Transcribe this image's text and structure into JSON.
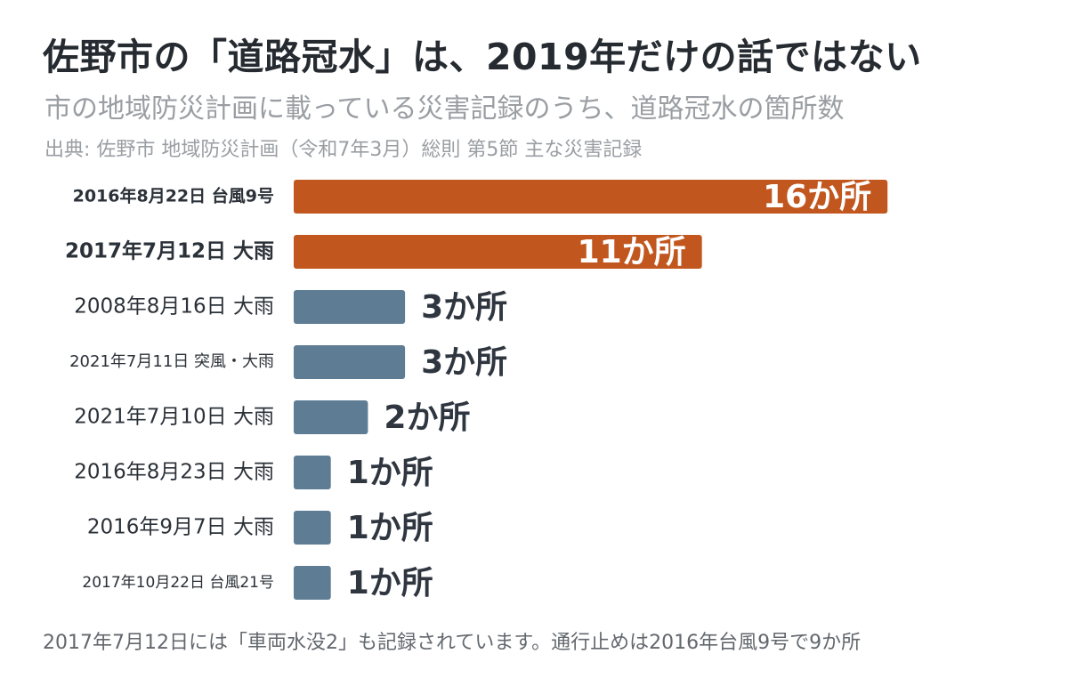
{
  "header": {
    "title": "佐野市の「道路冠水」は、2019年だけの話ではない",
    "subtitle": "市の地域防災計画に載っている災害記録のうち、道路冠水の箇所数",
    "source": "出典: 佐野市 地域防災計画（令和7年3月）総則 第5節 主な災害記録"
  },
  "footnote": "2017年7月12日には「車両水没2」も記録されています。通行止めは2016年台風9号で9か所",
  "colors": {
    "highlight": "#c1571f",
    "default": "#5e7d94",
    "value_inside": "#ffffff",
    "value_outside": "#2f3640"
  },
  "chart_data": {
    "type": "bar",
    "orientation": "horizontal",
    "unit": "か所",
    "categories": [
      "2016年8月22日 台風9号",
      "2017年7月12日 大雨",
      "2008年8月16日 大雨",
      "2021年7月11日 突風・大雨",
      "2021年7月10日 大雨",
      "2016年8月23日 大雨",
      "2016年9月7日 大雨",
      "2017年10月22日 台風21号"
    ],
    "values": [
      16,
      11,
      3,
      3,
      2,
      1,
      1,
      1
    ],
    "value_labels": [
      "16か所",
      "11か所",
      "3か所",
      "3か所",
      "2か所",
      "1か所",
      "1か所",
      "1か所"
    ],
    "highlighted": [
      true,
      true,
      false,
      false,
      false,
      false,
      false,
      false
    ],
    "xlim": [
      0,
      16
    ],
    "grid": false,
    "legend": "none"
  }
}
